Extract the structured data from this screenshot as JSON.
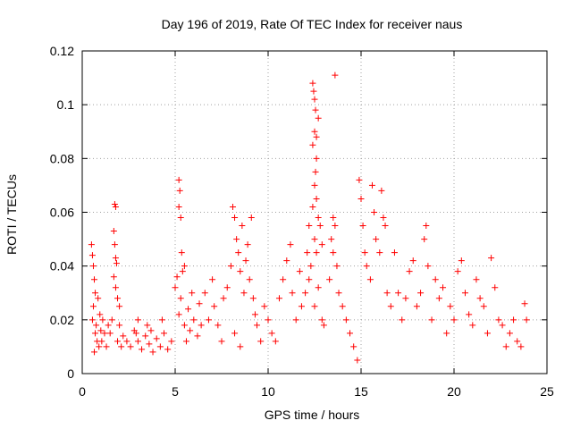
{
  "chart_data": {
    "type": "scatter",
    "title": "Day 196 of 2019, Rate Of TEC Index for receiver naus",
    "xlabel": "GPS time / hours",
    "ylabel": "ROTI / TECUs",
    "xlim": [
      0,
      25
    ],
    "ylim": [
      0,
      0.12
    ],
    "xticks": [
      0,
      5,
      10,
      15,
      20,
      25
    ],
    "xtick_labels": [
      "0",
      "5",
      "10",
      "15",
      "20",
      "25"
    ],
    "yticks": [
      0,
      0.02,
      0.04,
      0.06,
      0.08,
      0.1,
      0.12
    ],
    "ytick_labels": [
      "0",
      "0.02",
      "0.04",
      "0.06",
      "0.08",
      "0.1",
      "0.12"
    ],
    "grid": true,
    "marker": "plus",
    "color": "#ff0000",
    "series": [
      {
        "points": [
          [
            0.5,
            0.048
          ],
          [
            0.55,
            0.044
          ],
          [
            0.6,
            0.04
          ],
          [
            0.65,
            0.035
          ],
          [
            0.7,
            0.03
          ],
          [
            0.6,
            0.025
          ],
          [
            0.55,
            0.02
          ],
          [
            0.7,
            0.015
          ],
          [
            0.8,
            0.012
          ],
          [
            0.9,
            0.01
          ],
          [
            1.0,
            0.016
          ],
          [
            1.1,
            0.02
          ],
          [
            0.65,
            0.008
          ],
          [
            0.75,
            0.018
          ],
          [
            0.85,
            0.028
          ],
          [
            0.95,
            0.022
          ],
          [
            1.05,
            0.012
          ],
          [
            1.2,
            0.015
          ],
          [
            1.3,
            0.01
          ],
          [
            1.4,
            0.018
          ],
          [
            1.75,
            0.063
          ],
          [
            1.8,
            0.062
          ],
          [
            1.7,
            0.053
          ],
          [
            1.75,
            0.048
          ],
          [
            1.8,
            0.043
          ],
          [
            1.85,
            0.041
          ],
          [
            1.7,
            0.036
          ],
          [
            1.8,
            0.032
          ],
          [
            1.9,
            0.028
          ],
          [
            2.0,
            0.025
          ],
          [
            1.6,
            0.02
          ],
          [
            1.5,
            0.015
          ],
          [
            1.9,
            0.012
          ],
          [
            2.0,
            0.018
          ],
          [
            2.1,
            0.01
          ],
          [
            2.2,
            0.014
          ],
          [
            2.4,
            0.012
          ],
          [
            2.6,
            0.01
          ],
          [
            2.8,
            0.016
          ],
          [
            3.0,
            0.012
          ],
          [
            3.2,
            0.009
          ],
          [
            3.4,
            0.014
          ],
          [
            3.6,
            0.011
          ],
          [
            3.8,
            0.008
          ],
          [
            4.0,
            0.013
          ],
          [
            4.2,
            0.01
          ],
          [
            4.4,
            0.015
          ],
          [
            4.6,
            0.009
          ],
          [
            4.8,
            0.012
          ],
          [
            3.0,
            0.02
          ],
          [
            3.5,
            0.018
          ],
          [
            4.3,
            0.02
          ],
          [
            2.9,
            0.015
          ],
          [
            3.7,
            0.016
          ],
          [
            5.0,
            0.032
          ],
          [
            5.1,
            0.036
          ],
          [
            5.2,
            0.072
          ],
          [
            5.25,
            0.068
          ],
          [
            5.2,
            0.062
          ],
          [
            5.3,
            0.058
          ],
          [
            5.35,
            0.045
          ],
          [
            5.4,
            0.038
          ],
          [
            5.5,
            0.04
          ],
          [
            5.3,
            0.028
          ],
          [
            5.2,
            0.022
          ],
          [
            5.5,
            0.018
          ],
          [
            5.6,
            0.012
          ],
          [
            5.7,
            0.024
          ],
          [
            5.8,
            0.016
          ],
          [
            5.9,
            0.03
          ],
          [
            6.0,
            0.02
          ],
          [
            6.2,
            0.014
          ],
          [
            6.3,
            0.026
          ],
          [
            6.4,
            0.018
          ],
          [
            6.6,
            0.03
          ],
          [
            6.8,
            0.02
          ],
          [
            7.0,
            0.035
          ],
          [
            7.1,
            0.025
          ],
          [
            7.3,
            0.018
          ],
          [
            7.5,
            0.012
          ],
          [
            7.6,
            0.028
          ],
          [
            7.8,
            0.032
          ],
          [
            8.0,
            0.04
          ],
          [
            8.1,
            0.062
          ],
          [
            8.2,
            0.058
          ],
          [
            8.3,
            0.05
          ],
          [
            8.4,
            0.045
          ],
          [
            8.5,
            0.038
          ],
          [
            8.6,
            0.055
          ],
          [
            8.7,
            0.03
          ],
          [
            8.8,
            0.042
          ],
          [
            8.9,
            0.048
          ],
          [
            9.0,
            0.035
          ],
          [
            9.1,
            0.058
          ],
          [
            9.2,
            0.028
          ],
          [
            9.3,
            0.022
          ],
          [
            9.4,
            0.018
          ],
          [
            9.6,
            0.012
          ],
          [
            9.8,
            0.025
          ],
          [
            8.2,
            0.015
          ],
          [
            8.5,
            0.01
          ],
          [
            10.0,
            0.02
          ],
          [
            10.2,
            0.015
          ],
          [
            10.4,
            0.012
          ],
          [
            10.6,
            0.028
          ],
          [
            10.8,
            0.035
          ],
          [
            11.0,
            0.042
          ],
          [
            11.2,
            0.048
          ],
          [
            11.3,
            0.03
          ],
          [
            11.5,
            0.02
          ],
          [
            11.7,
            0.038
          ],
          [
            11.8,
            0.025
          ],
          [
            12.0,
            0.03
          ],
          [
            12.1,
            0.045
          ],
          [
            12.2,
            0.055
          ],
          [
            12.4,
            0.108
          ],
          [
            12.45,
            0.105
          ],
          [
            12.5,
            0.102
          ],
          [
            12.55,
            0.098
          ],
          [
            12.5,
            0.09
          ],
          [
            12.6,
            0.088
          ],
          [
            12.4,
            0.085
          ],
          [
            12.7,
            0.095
          ],
          [
            12.6,
            0.08
          ],
          [
            12.55,
            0.075
          ],
          [
            12.5,
            0.07
          ],
          [
            12.6,
            0.065
          ],
          [
            12.4,
            0.062
          ],
          [
            12.7,
            0.058
          ],
          [
            12.8,
            0.055
          ],
          [
            12.5,
            0.05
          ],
          [
            12.9,
            0.048
          ],
          [
            12.6,
            0.045
          ],
          [
            12.3,
            0.04
          ],
          [
            12.2,
            0.035
          ],
          [
            12.7,
            0.032
          ],
          [
            12.5,
            0.025
          ],
          [
            12.9,
            0.02
          ],
          [
            13.0,
            0.018
          ],
          [
            13.6,
            0.111
          ],
          [
            13.5,
            0.058
          ],
          [
            13.6,
            0.055
          ],
          [
            13.4,
            0.05
          ],
          [
            13.5,
            0.045
          ],
          [
            13.7,
            0.04
          ],
          [
            13.3,
            0.035
          ],
          [
            13.8,
            0.03
          ],
          [
            14.0,
            0.025
          ],
          [
            14.2,
            0.02
          ],
          [
            14.4,
            0.015
          ],
          [
            14.6,
            0.01
          ],
          [
            14.8,
            0.005
          ],
          [
            14.9,
            0.072
          ],
          [
            15.0,
            0.065
          ],
          [
            15.1,
            0.055
          ],
          [
            15.2,
            0.045
          ],
          [
            15.3,
            0.04
          ],
          [
            15.5,
            0.035
          ],
          [
            15.6,
            0.07
          ],
          [
            15.7,
            0.06
          ],
          [
            15.8,
            0.05
          ],
          [
            16.0,
            0.045
          ],
          [
            16.1,
            0.068
          ],
          [
            16.2,
            0.058
          ],
          [
            16.3,
            0.055
          ],
          [
            16.4,
            0.03
          ],
          [
            16.6,
            0.025
          ],
          [
            16.8,
            0.045
          ],
          [
            17.0,
            0.03
          ],
          [
            17.2,
            0.02
          ],
          [
            17.4,
            0.028
          ],
          [
            17.6,
            0.038
          ],
          [
            17.8,
            0.042
          ],
          [
            18.0,
            0.025
          ],
          [
            18.2,
            0.03
          ],
          [
            18.4,
            0.05
          ],
          [
            18.5,
            0.055
          ],
          [
            18.6,
            0.04
          ],
          [
            18.8,
            0.02
          ],
          [
            19.0,
            0.035
          ],
          [
            19.2,
            0.028
          ],
          [
            19.4,
            0.032
          ],
          [
            19.6,
            0.015
          ],
          [
            19.8,
            0.025
          ],
          [
            20.0,
            0.02
          ],
          [
            20.2,
            0.038
          ],
          [
            20.4,
            0.042
          ],
          [
            20.6,
            0.03
          ],
          [
            20.8,
            0.022
          ],
          [
            21.0,
            0.018
          ],
          [
            21.2,
            0.035
          ],
          [
            21.4,
            0.028
          ],
          [
            21.6,
            0.025
          ],
          [
            21.8,
            0.015
          ],
          [
            22.0,
            0.043
          ],
          [
            22.2,
            0.032
          ],
          [
            22.4,
            0.02
          ],
          [
            22.6,
            0.018
          ],
          [
            22.8,
            0.01
          ],
          [
            23.0,
            0.015
          ],
          [
            23.2,
            0.02
          ],
          [
            23.4,
            0.012
          ],
          [
            23.6,
            0.01
          ],
          [
            23.8,
            0.026
          ],
          [
            23.9,
            0.02
          ]
        ]
      }
    ]
  }
}
